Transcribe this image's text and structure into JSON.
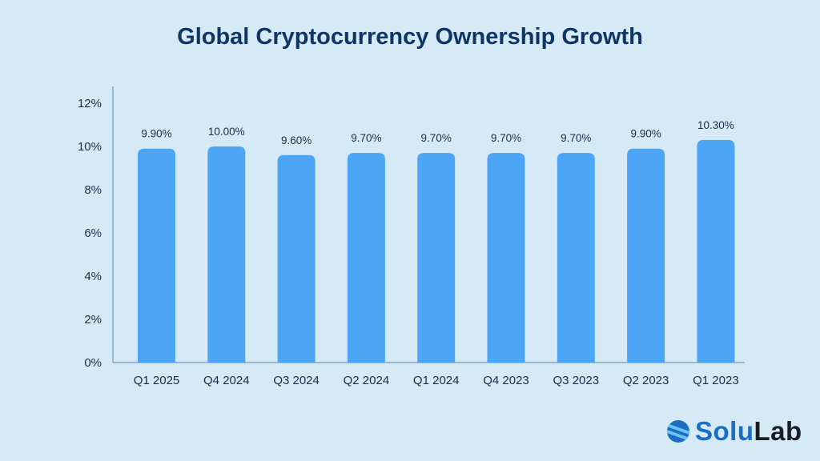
{
  "chart_data": {
    "type": "bar",
    "title": "Global Cryptocurrency Ownership Growth",
    "categories": [
      "Q1 2025",
      "Q4 2024",
      "Q3 2024",
      "Q2 2024",
      "Q1 2024",
      "Q4 2023",
      "Q3 2023",
      "Q2 2023",
      "Q1 2023"
    ],
    "values": [
      9.9,
      10.0,
      9.6,
      9.7,
      9.7,
      9.7,
      9.7,
      9.9,
      10.3
    ],
    "data_labels": [
      "9.90%",
      "10.00%",
      "9.60%",
      "9.70%",
      "9.70%",
      "9.70%",
      "9.70%",
      "9.90%",
      "10.30%"
    ],
    "yticks": [
      0,
      2,
      4,
      6,
      8,
      10,
      12
    ],
    "ytick_labels": [
      "0%",
      "2%",
      "4%",
      "6%",
      "8%",
      "10%",
      "12%"
    ],
    "ylim": [
      0,
      12
    ],
    "xlabel": "",
    "ylabel": "",
    "grid": false,
    "bar_color": "#4da6f5"
  },
  "logo": {
    "text_part1": "Solu",
    "text_part2": "Lab"
  }
}
